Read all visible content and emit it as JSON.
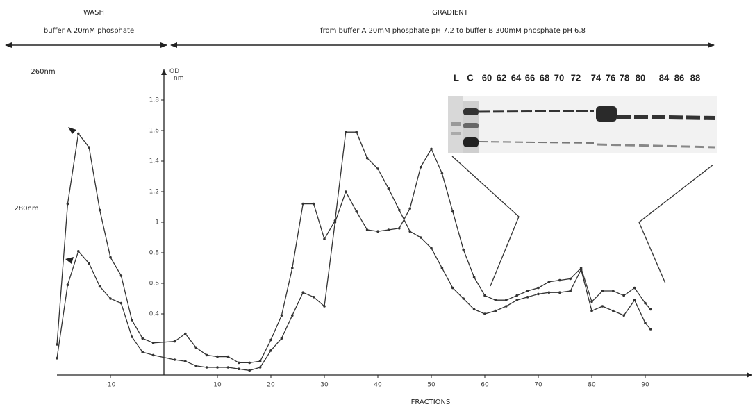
{
  "chart_data": {
    "type": "line",
    "phases": [
      {
        "title": "WASH",
        "subtitle": "buffer A 20mM phosphate"
      },
      {
        "title": "GRADIENT",
        "subtitle": "from buffer A 20mM phosphate pH 7.2 to buffer B 300mM phosphate pH 6.8"
      }
    ],
    "ylabel": [
      "OD",
      "nm"
    ],
    "xlabel": "FRACTIONS",
    "x": [
      -20,
      -18,
      -16,
      -14,
      -12,
      -10,
      -8,
      -6,
      -4,
      -2,
      2,
      4,
      6,
      8,
      10,
      12,
      14,
      16,
      18,
      20,
      22,
      24,
      26,
      28,
      30,
      32,
      34,
      36,
      38,
      40,
      42,
      44,
      46,
      48,
      50,
      52,
      54,
      56,
      58,
      60,
      62,
      64,
      66,
      68,
      70,
      72,
      74,
      76,
      78,
      80,
      82,
      84,
      86,
      88,
      90,
      91
    ],
    "series": [
      {
        "name": "260nm",
        "color": "#333333",
        "values": [
          0.2,
          1.12,
          1.58,
          1.49,
          1.08,
          0.77,
          0.65,
          0.36,
          0.24,
          0.21,
          0.22,
          0.27,
          0.18,
          0.13,
          0.12,
          0.12,
          0.08,
          0.08,
          0.09,
          0.23,
          0.39,
          0.7,
          1.12,
          1.12,
          0.89,
          1.01,
          1.59,
          1.59,
          1.42,
          1.35,
          1.22,
          1.08,
          0.94,
          0.9,
          0.83,
          0.7,
          0.57,
          0.5,
          0.43,
          0.4,
          0.42,
          0.45,
          0.49,
          0.51,
          0.53,
          0.54,
          0.54,
          0.55,
          0.69,
          0.42,
          0.45,
          0.42,
          0.39,
          0.49,
          0.34,
          0.3
        ]
      },
      {
        "name": "280nm",
        "color": "#333333",
        "values": [
          0.11,
          0.59,
          0.81,
          0.73,
          0.58,
          0.5,
          0.47,
          0.25,
          0.15,
          0.13,
          0.1,
          0.09,
          0.06,
          0.05,
          0.05,
          0.05,
          0.04,
          0.03,
          0.05,
          0.16,
          0.24,
          0.39,
          0.54,
          0.51,
          0.45,
          1.0,
          1.2,
          1.07,
          0.95,
          0.94,
          0.95,
          0.96,
          1.09,
          1.36,
          1.48,
          1.32,
          1.07,
          0.82,
          0.64,
          0.52,
          0.49,
          0.49,
          0.52,
          0.55,
          0.57,
          0.61,
          0.62,
          0.63,
          0.7,
          0.48,
          0.55,
          0.55,
          0.52,
          0.57,
          0.47,
          0.43
        ]
      }
    ],
    "xlim": [
      -20,
      110
    ],
    "xticks": [
      -10,
      10,
      20,
      30,
      40,
      50,
      60,
      70,
      80,
      90
    ],
    "ylim": [
      0,
      2.0
    ],
    "yticks": [
      0.4,
      0.6,
      0.8,
      1,
      1.2,
      1.4,
      1.6,
      1.8
    ],
    "grid": false,
    "gel": {
      "lanes": [
        "L",
        "C",
        "60",
        "62",
        "64",
        "66",
        "68",
        "70",
        "72",
        "74",
        "76",
        "78",
        "80",
        "84",
        "86",
        "88"
      ]
    }
  }
}
